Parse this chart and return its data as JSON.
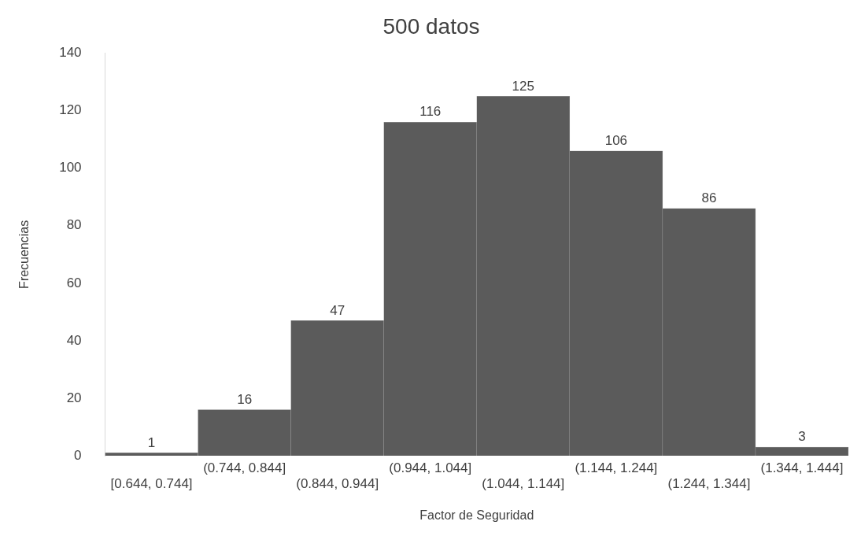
{
  "chart_data": {
    "type": "bar",
    "title": "500 datos",
    "xlabel": "Factor de Seguridad",
    "ylabel": "Frecuencias",
    "categories": [
      "[0.644, 0.744]",
      "(0.744, 0.844]",
      "(0.844, 0.944]",
      "(0.944, 1.044]",
      "(1.044, 1.144]",
      "(1.144, 1.244]",
      "(1.244, 1.344]",
      "(1.344, 1.444]"
    ],
    "values": [
      1,
      16,
      47,
      116,
      125,
      106,
      86,
      3
    ],
    "color": "#5b5b5b",
    "ylim": [
      0,
      140
    ],
    "yticks": [
      0,
      20,
      40,
      60,
      80,
      100,
      120,
      140
    ],
    "data_labels": true,
    "grid": false,
    "legend": false
  }
}
